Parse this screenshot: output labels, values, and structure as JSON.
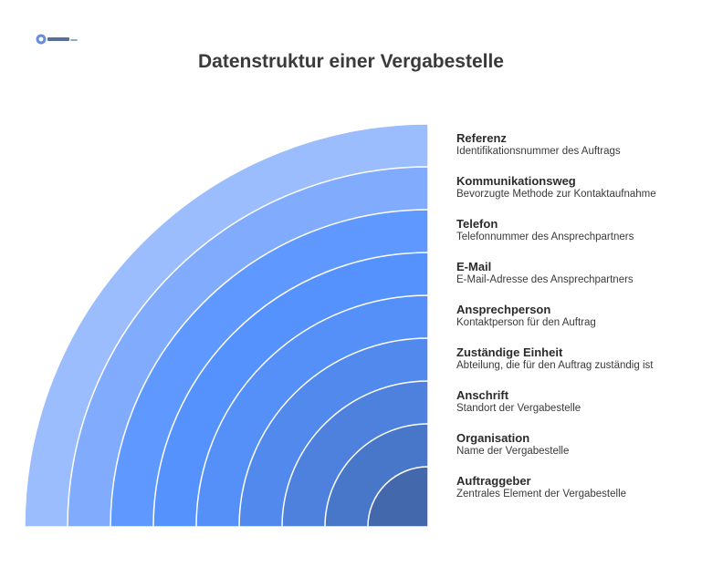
{
  "title": "Datenstruktur einer Vergabestelle",
  "logo": {
    "icon": "company-logo-icon"
  },
  "colors": {
    "title": "#3a3a3a",
    "separator": "#ffffff"
  },
  "layers": [
    {
      "name": "Referenz",
      "description": "Identifikationsnummer des Auftrags",
      "color": "#9bbdfd"
    },
    {
      "name": "Kommunikationsweg",
      "description": "Bevorzugte Methode zur Kontaktaufnahme",
      "color": "#81acfe"
    },
    {
      "name": "Telefon",
      "description": "Telefonnummer des Ansprechpartners",
      "color": "#5f98ff"
    },
    {
      "name": "E-Mail",
      "description": "E-Mail-Adresse des Ansprechpartners",
      "color": "#5592fd"
    },
    {
      "name": "Ansprechperson",
      "description": "Kontaktperson für den Auftrag",
      "color": "#5590f8"
    },
    {
      "name": "Zuständige Einheit",
      "description": "Abteilung, die für den Auftrag zuständig ist",
      "color": "#5189ec"
    },
    {
      "name": "Anschrift",
      "description": "Standort der Vergabestelle",
      "color": "#4d81dd"
    },
    {
      "name": "Organisation",
      "description": "Name der Vergabestelle",
      "color": "#4877c9"
    },
    {
      "name": "Auftraggeber",
      "description": "Zentrales Element der Vergabestelle",
      "color": "#4368ab"
    }
  ]
}
